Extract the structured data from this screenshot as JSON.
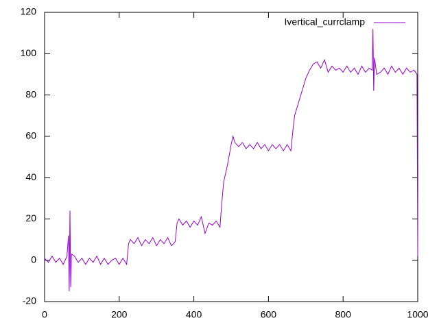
{
  "chart_data": {
    "type": "line",
    "x": [
      0,
      10,
      20,
      30,
      40,
      50,
      60,
      64,
      66,
      68,
      70,
      72,
      80,
      90,
      100,
      110,
      120,
      130,
      140,
      150,
      160,
      170,
      180,
      190,
      200,
      210,
      220,
      225,
      230,
      240,
      250,
      260,
      270,
      280,
      290,
      300,
      310,
      320,
      330,
      340,
      350,
      355,
      360,
      370,
      380,
      390,
      400,
      410,
      420,
      430,
      440,
      450,
      460,
      470,
      475,
      480,
      490,
      500,
      505,
      510,
      520,
      530,
      540,
      550,
      560,
      570,
      580,
      590,
      600,
      610,
      620,
      630,
      640,
      650,
      660,
      665,
      670,
      680,
      690,
      700,
      710,
      720,
      730,
      740,
      750,
      760,
      770,
      780,
      790,
      800,
      810,
      820,
      830,
      840,
      850,
      860,
      870,
      878,
      880,
      882,
      884,
      890,
      900,
      910,
      920,
      930,
      940,
      950,
      960,
      970,
      980,
      990,
      998,
      1000
    ],
    "series": [
      {
        "name": "Ivertical_currclamp",
        "color": "#9400d3",
        "values": [
          1,
          -1,
          2,
          -1,
          1,
          -2,
          2,
          12,
          -15,
          24,
          -13,
          3,
          2,
          -1,
          1,
          -2,
          1,
          -1,
          2,
          -2,
          1,
          -2,
          0,
          1,
          -2,
          1,
          -2,
          8,
          10,
          8,
          11,
          7,
          10,
          8,
          11,
          7,
          10,
          8,
          11,
          7,
          9,
          18,
          20,
          17,
          19,
          16,
          19,
          17,
          21,
          13,
          18,
          17,
          19,
          16,
          28,
          38,
          46,
          56,
          60,
          57,
          55,
          57,
          54,
          56,
          54,
          57,
          54,
          56,
          53,
          56,
          54,
          56,
          53,
          56,
          53,
          62,
          70,
          76,
          82,
          88,
          92,
          95,
          96,
          93,
          97,
          91,
          94,
          92,
          93,
          91,
          94,
          91,
          93,
          90,
          94,
          91,
          93,
          92,
          112,
          82,
          98,
          90,
          91,
          93,
          90,
          94,
          91,
          93,
          90,
          93,
          91,
          92,
          90,
          2
        ]
      }
    ],
    "xlim": [
      0,
      1000
    ],
    "xticks": [
      0,
      200,
      400,
      600,
      800,
      1000
    ],
    "ylim": [
      -20,
      120
    ],
    "yticks": [
      -20,
      0,
      20,
      40,
      60,
      80,
      100,
      120
    ],
    "grid": false,
    "legend": "top-right"
  }
}
